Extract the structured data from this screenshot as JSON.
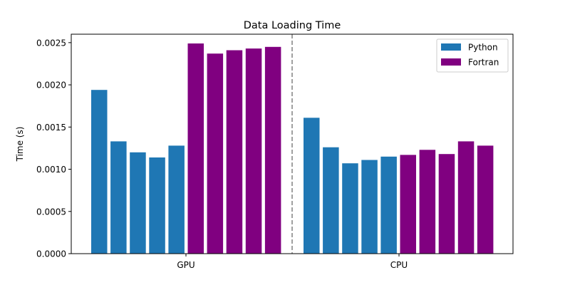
{
  "chart_data": {
    "type": "bar",
    "title": "Data Loading Time",
    "xlabel": "",
    "ylabel": "Time (s)",
    "ylim": [
      0,
      0.0026
    ],
    "yticks": [
      "0.0000",
      "0.0005",
      "0.0010",
      "0.0015",
      "0.0020",
      "0.0025"
    ],
    "ytick_values": [
      0,
      0.0005,
      0.001,
      0.0015,
      0.002,
      0.0025
    ],
    "categories": [
      "GPU",
      "CPU"
    ],
    "grid": false,
    "legend_position": "top-right",
    "divider": "dashed vertical line between GPU and CPU groups",
    "series": [
      {
        "name": "Python",
        "color": "#1f77b4",
        "values": {
          "GPU": [
            0.00194,
            0.00133,
            0.0012,
            0.00114,
            0.00128
          ],
          "CPU": [
            0.00161,
            0.00126,
            0.00107,
            0.00111,
            0.00115
          ]
        }
      },
      {
        "name": "Fortran",
        "color": "#800080",
        "values": {
          "GPU": [
            0.00249,
            0.00237,
            0.00241,
            0.00243,
            0.00245
          ],
          "CPU": [
            0.00117,
            0.00123,
            0.00118,
            0.00133,
            0.00128
          ]
        }
      }
    ]
  }
}
